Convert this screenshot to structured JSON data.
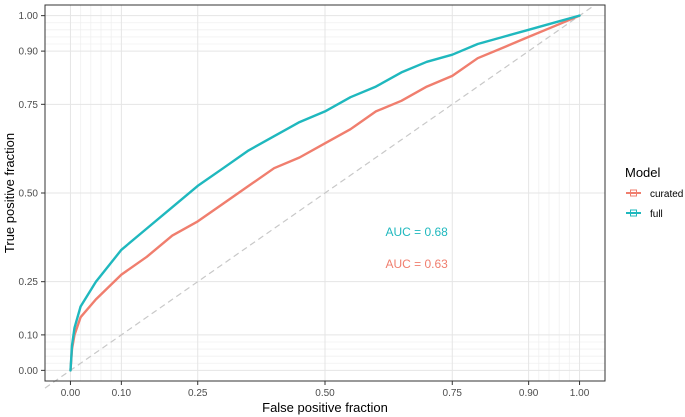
{
  "chart_data": {
    "type": "line",
    "xlabel": "False positive fraction",
    "ylabel": "True positive fraction",
    "xlim": [
      -0.05,
      1.05
    ],
    "ylim": [
      -0.03,
      1.03
    ],
    "x_ticks": [
      0,
      0.1,
      0.25,
      0.5,
      0.75,
      0.9,
      1.0
    ],
    "x_tick_labels": [
      "0.00",
      "0.10",
      "0.25",
      "0.50",
      "0.75",
      "0.90",
      "1.00"
    ],
    "y_ticks": [
      0,
      0.1,
      0.25,
      0.5,
      0.75,
      0.9,
      1.0
    ],
    "y_tick_labels": [
      "0.00",
      "0.10",
      "0.25",
      "0.50",
      "0.75",
      "0.90",
      "1.00"
    ],
    "minor_grid": [
      0.02,
      0.04,
      0.06,
      0.08,
      0.92,
      0.94,
      0.96,
      0.98
    ],
    "grid": true,
    "reference_line": {
      "from": [
        0,
        0
      ],
      "to": [
        1,
        1
      ],
      "style": "dashed",
      "color": "#c8c8c8"
    },
    "legend": {
      "title": "Model",
      "position": "right",
      "entries": [
        {
          "label": "curated",
          "color": "#F07E6E"
        },
        {
          "label": "full",
          "color": "#1FB8BE"
        }
      ]
    },
    "series": [
      {
        "name": "curated",
        "color": "#F07E6E",
        "x": [
          0,
          0.003,
          0.008,
          0.02,
          0.05,
          0.1,
          0.15,
          0.2,
          0.25,
          0.3,
          0.35,
          0.4,
          0.45,
          0.5,
          0.55,
          0.6,
          0.65,
          0.7,
          0.75,
          0.8,
          0.85,
          0.9,
          0.95,
          1.0
        ],
        "y": [
          0,
          0.06,
          0.1,
          0.15,
          0.2,
          0.27,
          0.32,
          0.38,
          0.42,
          0.47,
          0.52,
          0.57,
          0.6,
          0.64,
          0.68,
          0.73,
          0.76,
          0.8,
          0.83,
          0.88,
          0.91,
          0.94,
          0.97,
          1.0
        ]
      },
      {
        "name": "full",
        "color": "#1FB8BE",
        "x": [
          0,
          0.003,
          0.008,
          0.02,
          0.05,
          0.1,
          0.15,
          0.2,
          0.25,
          0.3,
          0.35,
          0.4,
          0.45,
          0.5,
          0.55,
          0.6,
          0.65,
          0.7,
          0.75,
          0.8,
          0.85,
          0.9,
          0.95,
          1.0
        ],
        "y": [
          0,
          0.07,
          0.12,
          0.18,
          0.25,
          0.34,
          0.4,
          0.46,
          0.52,
          0.57,
          0.62,
          0.66,
          0.7,
          0.73,
          0.77,
          0.8,
          0.84,
          0.87,
          0.89,
          0.92,
          0.94,
          0.96,
          0.98,
          1.0
        ]
      }
    ],
    "annotations": [
      {
        "text": "AUC = 0.68",
        "series": "full",
        "color": "#1FB8BE",
        "x": 0.68,
        "y": 0.39
      },
      {
        "text": "AUC = 0.63",
        "series": "curated",
        "color": "#F07E6E",
        "x": 0.68,
        "y": 0.3
      }
    ]
  }
}
